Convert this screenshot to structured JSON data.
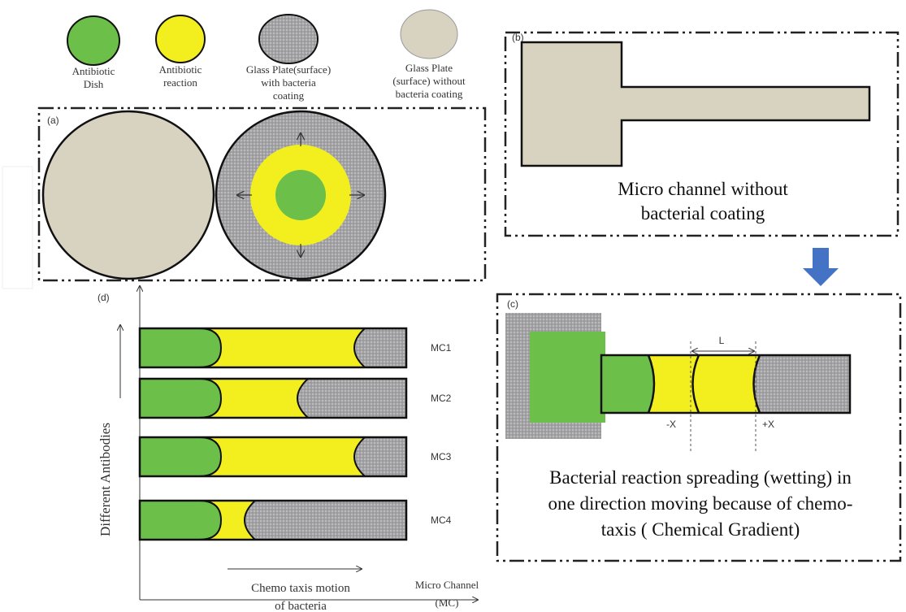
{
  "legend": {
    "items": [
      {
        "lines": [
          "Antibiotic",
          "Dish"
        ]
      },
      {
        "lines": [
          "Antibiotic",
          "reaction"
        ]
      },
      {
        "lines": [
          "Glass Plate(surface)",
          "with bacteria",
          "coating"
        ]
      },
      {
        "lines": [
          "Glass Plate",
          "(surface) without",
          "bacteria coating"
        ]
      }
    ]
  },
  "panels": {
    "a": {
      "label": "(a)"
    },
    "b": {
      "label": "(b)",
      "caption": [
        "Micro channel without",
        "bacterial coating"
      ]
    },
    "c": {
      "label": "(c)",
      "length": "L",
      "minus": "-X",
      "plus": "+X",
      "caption": [
        "Bacterial reaction spreading (wetting)  in",
        "one direction moving  because of chemo-",
        "taxis ( Chemical Gradient)"
      ]
    },
    "d": {
      "label": "(d)",
      "channels": [
        "MC1",
        "MC2",
        "MC3",
        "MC4"
      ],
      "y_axis": "Different Antibodies",
      "x_axis": [
        "Chemo taxis motion",
        "of bacteria"
      ],
      "x_end": [
        "Micro Channel",
        "(MC)"
      ]
    }
  }
}
